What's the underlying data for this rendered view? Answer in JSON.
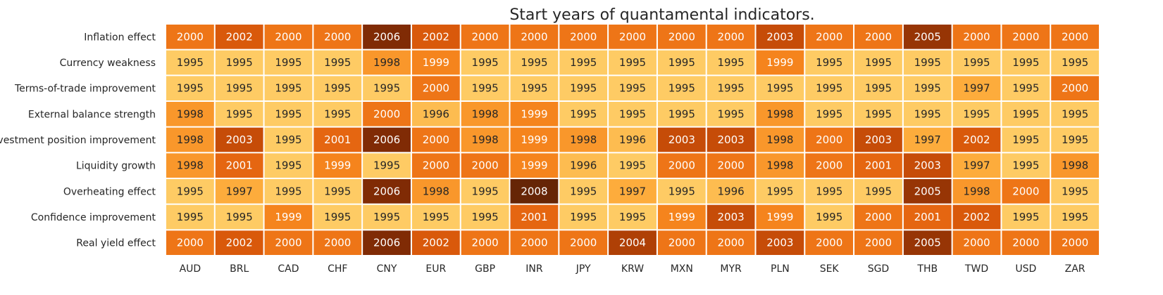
{
  "chart_data": {
    "type": "heatmap",
    "title": "Start years of quantamental indicators.",
    "xlabel": "",
    "ylabel": "",
    "legend": "none",
    "grid": false,
    "columns": [
      "AUD",
      "BRL",
      "CAD",
      "CHF",
      "CNY",
      "EUR",
      "GBP",
      "INR",
      "JPY",
      "KRW",
      "MXN",
      "MYR",
      "PLN",
      "SEK",
      "SGD",
      "THB",
      "TWD",
      "USD",
      "ZAR"
    ],
    "rows": [
      "Inflation effect",
      "Currency weakness",
      "Terms-of-trade improvement",
      "External balance strength",
      "Investment position improvement",
      "Liquidity growth",
      "Overheating effect",
      "Confidence improvement",
      "Real yield effect"
    ],
    "values": [
      [
        2000,
        2002,
        2000,
        2000,
        2006,
        2002,
        2000,
        2000,
        2000,
        2000,
        2000,
        2000,
        2003,
        2000,
        2000,
        2005,
        2000,
        2000,
        2000
      ],
      [
        1995,
        1995,
        1995,
        1995,
        1998,
        1999,
        1995,
        1995,
        1995,
        1995,
        1995,
        1995,
        1999,
        1995,
        1995,
        1995,
        1995,
        1995,
        1995
      ],
      [
        1995,
        1995,
        1995,
        1995,
        1995,
        2000,
        1995,
        1995,
        1995,
        1995,
        1995,
        1995,
        1995,
        1995,
        1995,
        1995,
        1997,
        1995,
        2000
      ],
      [
        1998,
        1995,
        1995,
        1995,
        2000,
        1996,
        1998,
        1999,
        1995,
        1995,
        1995,
        1995,
        1998,
        1995,
        1995,
        1995,
        1995,
        1995,
        1995
      ],
      [
        1998,
        2003,
        1995,
        2001,
        2006,
        2000,
        1998,
        1999,
        1998,
        1996,
        2003,
        2003,
        1998,
        2000,
        2003,
        1997,
        2002,
        1995,
        1995
      ],
      [
        1998,
        2001,
        1995,
        1999,
        1995,
        2000,
        2000,
        1999,
        1996,
        1995,
        2000,
        2000,
        1998,
        2000,
        2001,
        2003,
        1997,
        1995,
        1998
      ],
      [
        1995,
        1997,
        1995,
        1995,
        2006,
        1998,
        1995,
        2008,
        1995,
        1997,
        1995,
        1996,
        1995,
        1995,
        1995,
        2005,
        1998,
        2000,
        1995
      ],
      [
        1995,
        1995,
        1999,
        1995,
        1995,
        1995,
        1995,
        2001,
        1995,
        1995,
        1999,
        2003,
        1999,
        1995,
        2000,
        2001,
        2002,
        1995,
        1995
      ],
      [
        2000,
        2002,
        2000,
        2000,
        2006,
        2002,
        2000,
        2000,
        2000,
        2004,
        2000,
        2000,
        2003,
        2000,
        2000,
        2005,
        2000,
        2000,
        2000
      ]
    ],
    "color_scale": {
      "range": [
        1995,
        2008
      ],
      "stops": [
        "#fecb64",
        "#fdaf3e",
        "#f7881f",
        "#ea6c13",
        "#d45309",
        "#a83d05",
        "#7d2905",
        "#662506"
      ]
    },
    "text_color_light": "#ffffff",
    "text_color_dark": "#262626"
  }
}
